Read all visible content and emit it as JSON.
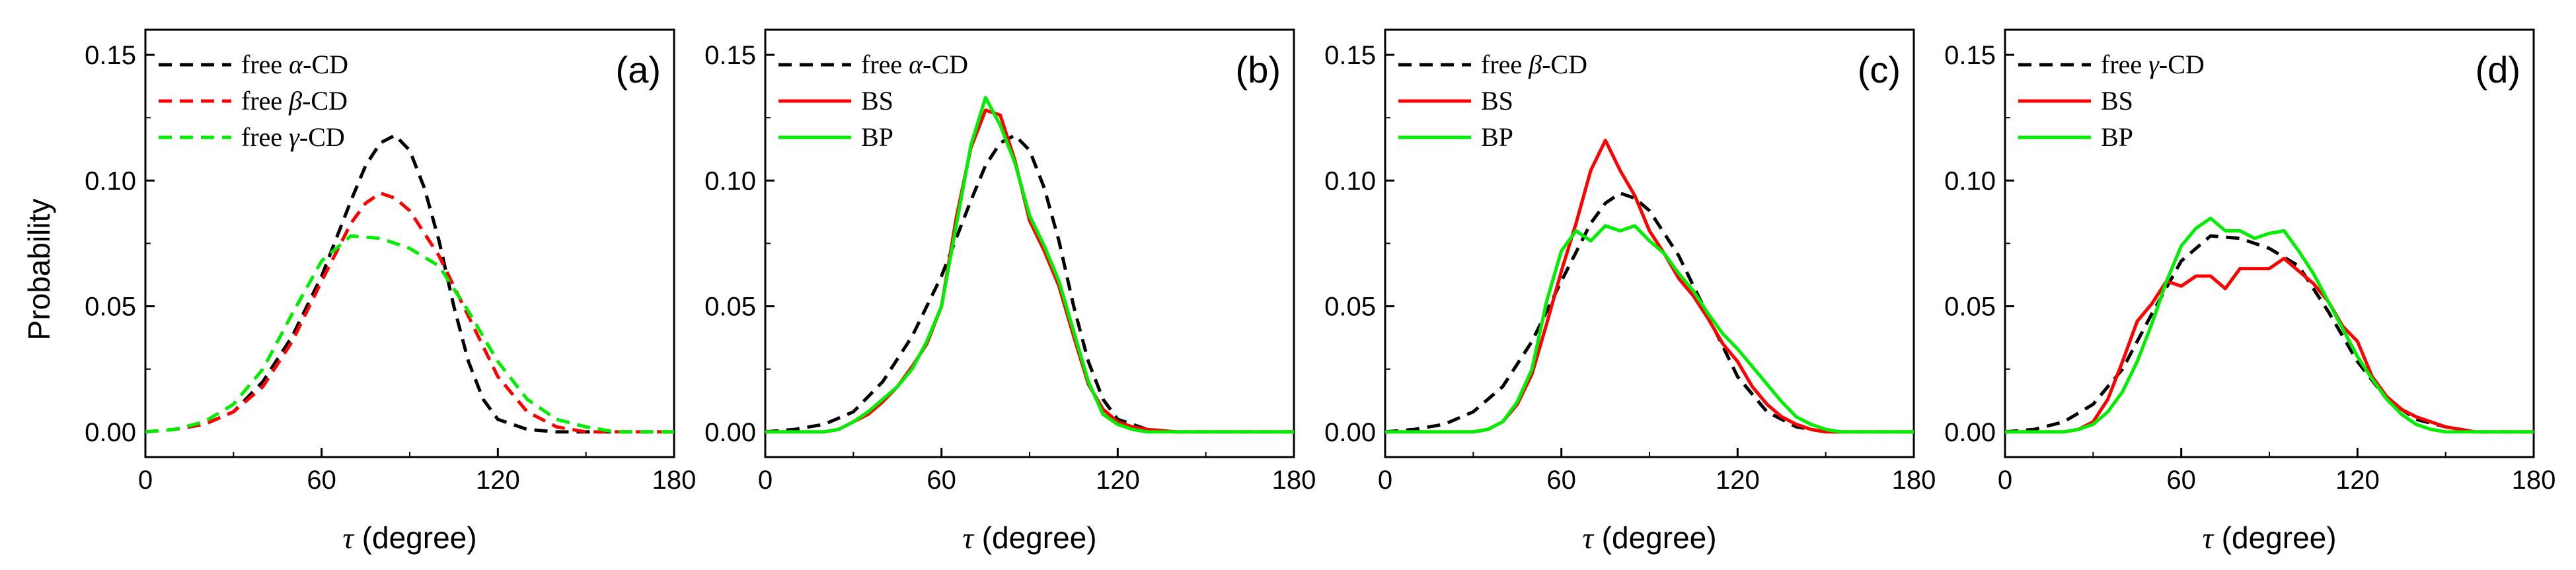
{
  "figure": {
    "ylabel": "Probability"
  },
  "chart_data": [
    {
      "type": "line",
      "panel_label": "(a)",
      "xlabel_symbol": "τ",
      "xlabel_text": " (degree)",
      "xlim": [
        0,
        180
      ],
      "ylim": [
        -0.01,
        0.16
      ],
      "xticks": [
        "0",
        "60",
        "120",
        "180"
      ],
      "yticks": [
        "0.00",
        "0.05",
        "0.10",
        "0.15"
      ],
      "legend_position": "top-left",
      "series": [
        {
          "legend_prefix": "free ",
          "legend_symbol": "α",
          "legend_suffix": "-CD",
          "color": "#000000",
          "dash": true,
          "x": [
            0,
            10,
            20,
            30,
            40,
            50,
            60,
            70,
            75,
            80,
            85,
            90,
            95,
            100,
            105,
            110,
            115,
            120,
            130,
            140,
            150,
            160,
            170,
            180
          ],
          "y": [
            0,
            0.001,
            0.003,
            0.008,
            0.02,
            0.038,
            0.062,
            0.092,
            0.106,
            0.115,
            0.118,
            0.112,
            0.097,
            0.076,
            0.05,
            0.028,
            0.013,
            0.005,
            0.001,
            0,
            0,
            0,
            0,
            0
          ]
        },
        {
          "legend_prefix": "free ",
          "legend_symbol": "β",
          "legend_suffix": "-CD",
          "color": "#ff0000",
          "dash": true,
          "x": [
            0,
            10,
            20,
            30,
            40,
            50,
            60,
            70,
            75,
            80,
            85,
            90,
            100,
            110,
            120,
            130,
            140,
            150,
            160,
            170,
            180
          ],
          "y": [
            0,
            0.001,
            0.003,
            0.008,
            0.018,
            0.036,
            0.06,
            0.083,
            0.091,
            0.095,
            0.093,
            0.088,
            0.07,
            0.046,
            0.022,
            0.008,
            0.002,
            0,
            0,
            0,
            0
          ]
        },
        {
          "legend_prefix": "free ",
          "legend_symbol": "γ",
          "legend_suffix": "-CD",
          "color": "#00ee00",
          "dash": true,
          "x": [
            0,
            10,
            20,
            30,
            40,
            50,
            60,
            70,
            80,
            90,
            100,
            110,
            120,
            130,
            140,
            150,
            160,
            170,
            180
          ],
          "y": [
            0,
            0.001,
            0.004,
            0.011,
            0.025,
            0.047,
            0.068,
            0.078,
            0.077,
            0.073,
            0.066,
            0.048,
            0.028,
            0.013,
            0.005,
            0.002,
            0,
            0,
            0
          ]
        }
      ]
    },
    {
      "type": "line",
      "panel_label": "(b)",
      "xlabel_symbol": "τ",
      "xlabel_text": " (degree)",
      "xlim": [
        0,
        180
      ],
      "ylim": [
        -0.01,
        0.16
      ],
      "xticks": [
        "0",
        "60",
        "120",
        "180"
      ],
      "yticks": [
        "0.00",
        "0.05",
        "0.10",
        "0.15"
      ],
      "legend_position": "top-left",
      "series": [
        {
          "legend_prefix": "free ",
          "legend_symbol": "α",
          "legend_suffix": "-CD",
          "color": "#000000",
          "dash": true,
          "x": [
            0,
            10,
            20,
            30,
            40,
            50,
            60,
            70,
            75,
            80,
            85,
            90,
            95,
            100,
            105,
            110,
            115,
            120,
            130,
            140,
            150,
            160,
            170,
            180
          ],
          "y": [
            0,
            0.001,
            0.003,
            0.008,
            0.02,
            0.038,
            0.062,
            0.092,
            0.106,
            0.115,
            0.118,
            0.112,
            0.097,
            0.076,
            0.05,
            0.028,
            0.013,
            0.005,
            0.001,
            0,
            0,
            0,
            0,
            0
          ]
        },
        {
          "legend_prefix": "",
          "legend_symbol": "",
          "legend_suffix": "BS",
          "color": "#ff0000",
          "dash": false,
          "x": [
            0,
            20,
            25,
            30,
            35,
            40,
            45,
            50,
            55,
            60,
            65,
            70,
            75,
            80,
            85,
            90,
            95,
            100,
            105,
            110,
            115,
            120,
            125,
            130,
            140,
            180
          ],
          "y": [
            0,
            0,
            0.001,
            0.004,
            0.007,
            0.012,
            0.018,
            0.026,
            0.035,
            0.05,
            0.085,
            0.113,
            0.128,
            0.126,
            0.108,
            0.084,
            0.072,
            0.058,
            0.038,
            0.019,
            0.009,
            0.004,
            0.002,
            0.001,
            0,
            0
          ]
        },
        {
          "legend_prefix": "",
          "legend_symbol": "",
          "legend_suffix": "BP",
          "color": "#00ee00",
          "dash": false,
          "x": [
            0,
            20,
            25,
            30,
            35,
            40,
            45,
            50,
            55,
            60,
            65,
            70,
            75,
            80,
            85,
            90,
            95,
            100,
            105,
            110,
            115,
            120,
            125,
            130,
            140,
            180
          ],
          "y": [
            0,
            0,
            0.001,
            0.004,
            0.008,
            0.013,
            0.018,
            0.025,
            0.036,
            0.05,
            0.082,
            0.114,
            0.133,
            0.122,
            0.107,
            0.086,
            0.074,
            0.06,
            0.04,
            0.02,
            0.007,
            0.003,
            0.001,
            0,
            0,
            0
          ]
        }
      ]
    },
    {
      "type": "line",
      "panel_label": "(c)",
      "xlabel_symbol": "τ",
      "xlabel_text": " (degree)",
      "xlim": [
        0,
        180
      ],
      "ylim": [
        -0.01,
        0.16
      ],
      "xticks": [
        "0",
        "60",
        "120",
        "180"
      ],
      "yticks": [
        "0.00",
        "0.05",
        "0.10",
        "0.15"
      ],
      "legend_position": "top-left",
      "series": [
        {
          "legend_prefix": "free ",
          "legend_symbol": "β",
          "legend_suffix": "-CD",
          "color": "#000000",
          "dash": true,
          "x": [
            0,
            10,
            20,
            30,
            40,
            50,
            60,
            70,
            75,
            80,
            85,
            90,
            100,
            110,
            120,
            130,
            140,
            150,
            160,
            170,
            180
          ],
          "y": [
            0,
            0.001,
            0.003,
            0.008,
            0.018,
            0.036,
            0.06,
            0.083,
            0.091,
            0.095,
            0.093,
            0.088,
            0.07,
            0.046,
            0.022,
            0.008,
            0.002,
            0,
            0,
            0,
            0
          ]
        },
        {
          "legend_prefix": "",
          "legend_symbol": "",
          "legend_suffix": "BS",
          "color": "#ff0000",
          "dash": false,
          "x": [
            0,
            30,
            35,
            40,
            45,
            50,
            55,
            60,
            65,
            70,
            75,
            80,
            85,
            90,
            95,
            100,
            105,
            110,
            115,
            120,
            125,
            130,
            135,
            140,
            145,
            150,
            160,
            180
          ],
          "y": [
            0,
            0,
            0.001,
            0.004,
            0.011,
            0.023,
            0.043,
            0.064,
            0.083,
            0.104,
            0.116,
            0.104,
            0.094,
            0.08,
            0.071,
            0.061,
            0.054,
            0.045,
            0.035,
            0.028,
            0.018,
            0.011,
            0.006,
            0.003,
            0.001,
            0,
            0,
            0
          ]
        },
        {
          "legend_prefix": "",
          "legend_symbol": "",
          "legend_suffix": "BP",
          "color": "#00ee00",
          "dash": false,
          "x": [
            0,
            30,
            35,
            40,
            45,
            50,
            55,
            60,
            65,
            70,
            75,
            80,
            85,
            90,
            95,
            100,
            105,
            110,
            115,
            120,
            125,
            130,
            135,
            140,
            145,
            150,
            155,
            160,
            180
          ],
          "y": [
            0,
            0,
            0.001,
            0.004,
            0.012,
            0.025,
            0.052,
            0.072,
            0.08,
            0.076,
            0.082,
            0.08,
            0.082,
            0.076,
            0.071,
            0.063,
            0.056,
            0.047,
            0.039,
            0.033,
            0.026,
            0.019,
            0.012,
            0.006,
            0.003,
            0.001,
            0,
            0,
            0
          ]
        }
      ]
    },
    {
      "type": "line",
      "panel_label": "(d)",
      "xlabel_symbol": "τ",
      "xlabel_text": " (degree)",
      "xlim": [
        0,
        180
      ],
      "ylim": [
        -0.01,
        0.16
      ],
      "xticks": [
        "0",
        "60",
        "120",
        "180"
      ],
      "yticks": [
        "0.00",
        "0.05",
        "0.10",
        "0.15"
      ],
      "legend_position": "top-left",
      "series": [
        {
          "legend_prefix": "free ",
          "legend_symbol": "γ",
          "legend_suffix": "-CD",
          "color": "#000000",
          "dash": true,
          "x": [
            0,
            10,
            20,
            30,
            40,
            50,
            60,
            70,
            80,
            90,
            100,
            110,
            120,
            130,
            140,
            150,
            160,
            170,
            180
          ],
          "y": [
            0,
            0.001,
            0.004,
            0.011,
            0.025,
            0.047,
            0.068,
            0.078,
            0.077,
            0.073,
            0.066,
            0.048,
            0.028,
            0.013,
            0.005,
            0.002,
            0,
            0,
            0
          ]
        },
        {
          "legend_prefix": "",
          "legend_symbol": "",
          "legend_suffix": "BS",
          "color": "#ff0000",
          "dash": false,
          "x": [
            0,
            20,
            25,
            30,
            35,
            40,
            45,
            50,
            55,
            60,
            65,
            70,
            75,
            80,
            85,
            90,
            95,
            100,
            105,
            110,
            115,
            120,
            125,
            130,
            135,
            140,
            145,
            150,
            155,
            160,
            170,
            180
          ],
          "y": [
            0,
            0,
            0.001,
            0.004,
            0.013,
            0.028,
            0.044,
            0.051,
            0.06,
            0.058,
            0.062,
            0.062,
            0.057,
            0.065,
            0.065,
            0.065,
            0.069,
            0.064,
            0.059,
            0.052,
            0.042,
            0.036,
            0.022,
            0.014,
            0.009,
            0.006,
            0.004,
            0.002,
            0.001,
            0,
            0,
            0
          ]
        },
        {
          "legend_prefix": "",
          "legend_symbol": "",
          "legend_suffix": "BP",
          "color": "#00ee00",
          "dash": false,
          "x": [
            0,
            20,
            25,
            30,
            35,
            40,
            45,
            50,
            55,
            60,
            65,
            70,
            75,
            80,
            85,
            90,
            95,
            100,
            105,
            110,
            115,
            120,
            125,
            130,
            135,
            140,
            145,
            150,
            160,
            180
          ],
          "y": [
            0,
            0,
            0.001,
            0.003,
            0.008,
            0.016,
            0.028,
            0.043,
            0.06,
            0.074,
            0.081,
            0.085,
            0.08,
            0.08,
            0.077,
            0.079,
            0.08,
            0.072,
            0.063,
            0.052,
            0.041,
            0.03,
            0.021,
            0.013,
            0.007,
            0.003,
            0.001,
            0,
            0,
            0
          ]
        }
      ]
    }
  ]
}
